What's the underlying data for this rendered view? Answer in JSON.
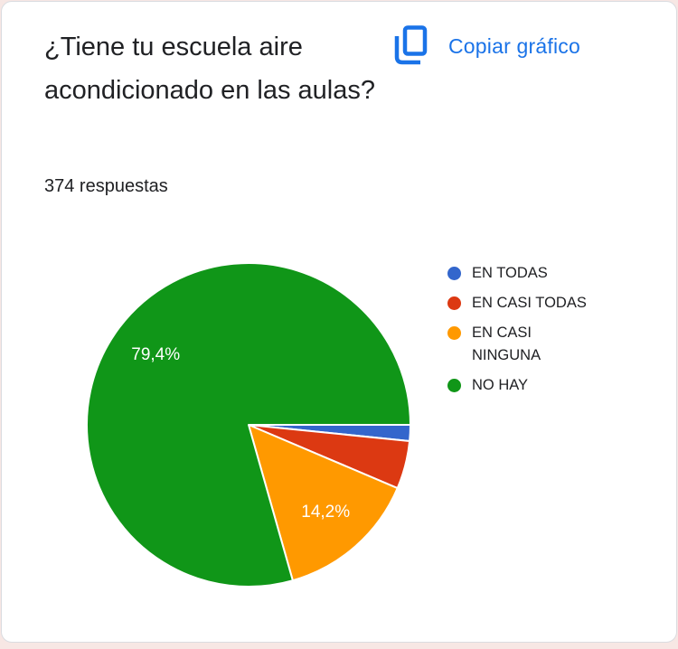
{
  "card": {
    "title": "¿Tiene tu escuela aire acondicionado en las aulas?",
    "responses_text": "374 respuestas",
    "copy_button": {
      "label": "Copiar gráfico",
      "icon": "copy-icon"
    }
  },
  "colors": {
    "page_background": "#f7e7e4",
    "card_background": "#ffffff",
    "card_border": "#dadce0",
    "text_primary": "#202124",
    "accent_blue": "#1a73e8",
    "slice_border": "#ffffff"
  },
  "chart_data": {
    "type": "pie",
    "title": "¿Tiene tu escuela aire acondicionado en las aulas?",
    "subtitle": "374 respuestas",
    "total_responses": 374,
    "legend_position": "right",
    "start_angle_deg": 0,
    "direction": "clockwise",
    "slices": [
      {
        "label": "EN TODAS",
        "percent": 1.6,
        "color": "#3366cc",
        "data_label": ""
      },
      {
        "label": "EN CASI TODAS",
        "percent": 4.8,
        "color": "#dc3912",
        "data_label": ""
      },
      {
        "label": "EN CASI NINGUNA",
        "percent": 14.2,
        "color": "#ff9900",
        "data_label": "14,2%"
      },
      {
        "label": "NO HAY",
        "percent": 79.4,
        "color": "#109618",
        "data_label": "79,4%"
      }
    ]
  }
}
